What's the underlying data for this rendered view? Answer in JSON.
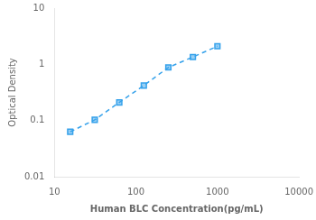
{
  "chart_data": {
    "type": "line",
    "x": [
      15.625,
      31.25,
      62.5,
      125,
      250,
      500,
      1000
    ],
    "values": [
      0.063,
      0.103,
      0.21,
      0.42,
      0.88,
      1.35,
      2.1
    ],
    "xlabel": "Human BLC Concentration(pg/mL)",
    "ylabel": "Optical Density",
    "xlim": [
      10,
      10000
    ],
    "ylim": [
      0.01,
      10
    ],
    "xticks": [
      10,
      100,
      1000,
      10000
    ],
    "yticks": [
      0.01,
      0.1,
      1,
      10
    ],
    "log": true,
    "grid": false,
    "marker": "square",
    "line_style": "dashed"
  }
}
